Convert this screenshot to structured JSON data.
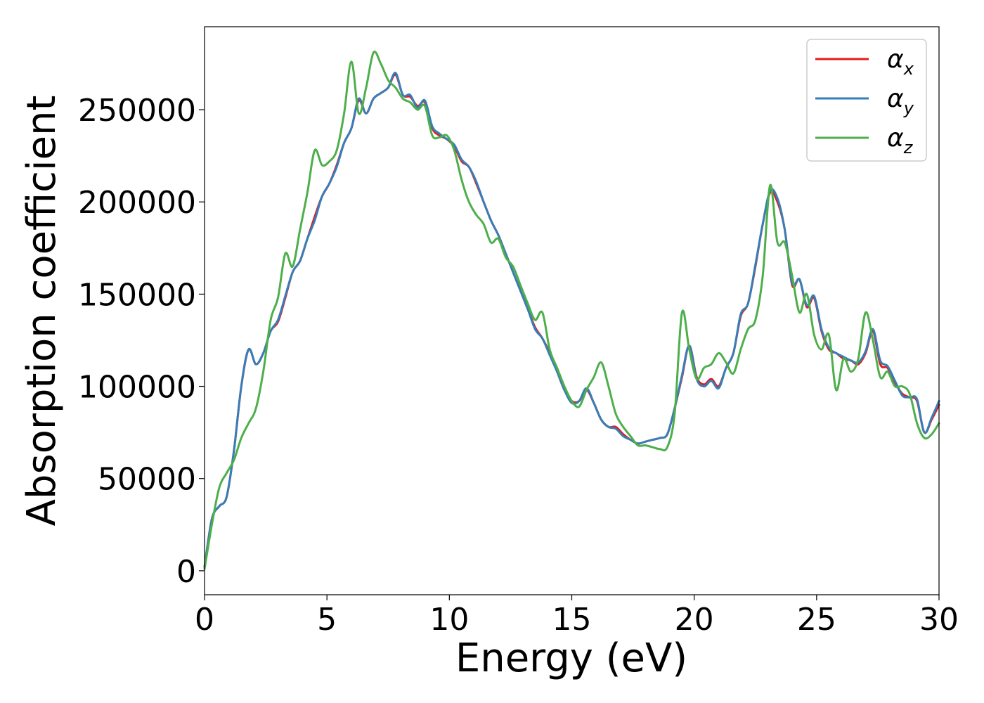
{
  "chart_data": {
    "type": "line",
    "xlabel": "Energy (eV)",
    "ylabel": "Absorption coefficient",
    "xlim": [
      0,
      30
    ],
    "ylim": [
      -13000,
      295000
    ],
    "xticks": [
      0,
      5,
      10,
      15,
      20,
      25,
      30
    ],
    "yticks": [
      0,
      50000,
      100000,
      150000,
      200000,
      250000
    ],
    "grid": false,
    "legend_position": "top-right",
    "series": [
      {
        "name": "α",
        "subscript": "x",
        "color": "#e41a1c",
        "x": [
          0,
          0.3,
          0.6,
          0.9,
          1.2,
          1.5,
          1.8,
          2.1,
          2.4,
          2.7,
          3.0,
          3.3,
          3.6,
          3.9,
          4.2,
          4.5,
          4.8,
          5.1,
          5.4,
          5.7,
          6.0,
          6.3,
          6.6,
          6.9,
          7.2,
          7.5,
          7.8,
          8.1,
          8.4,
          8.7,
          9.0,
          9.3,
          9.6,
          9.9,
          10.2,
          10.5,
          10.8,
          11.1,
          11.4,
          11.7,
          12.0,
          12.3,
          12.6,
          12.9,
          13.2,
          13.5,
          13.8,
          14.1,
          14.4,
          14.7,
          15.0,
          15.3,
          15.6,
          15.9,
          16.2,
          16.5,
          16.8,
          17.1,
          17.4,
          17.7,
          18.0,
          18.3,
          18.6,
          18.9,
          19.2,
          19.5,
          19.8,
          20.1,
          20.4,
          20.7,
          21.0,
          21.3,
          21.6,
          21.9,
          22.2,
          22.5,
          22.8,
          23.1,
          23.4,
          23.7,
          24.0,
          24.3,
          24.6,
          24.9,
          25.2,
          25.5,
          25.8,
          26.1,
          26.4,
          26.7,
          27.0,
          27.3,
          27.6,
          27.9,
          28.2,
          28.5,
          28.8,
          29.1,
          29.4,
          29.7,
          30.0
        ],
        "y": [
          2000,
          28000,
          35000,
          40000,
          65000,
          100000,
          120000,
          112000,
          118000,
          130000,
          135000,
          148000,
          162000,
          168000,
          180000,
          192000,
          203000,
          210000,
          220000,
          232000,
          240000,
          255000,
          248000,
          256000,
          259000,
          262000,
          269000,
          258000,
          257000,
          252000,
          254000,
          240000,
          236000,
          234000,
          230000,
          222000,
          219000,
          210000,
          200000,
          190000,
          182000,
          172000,
          162000,
          152000,
          142000,
          132000,
          126000,
          118000,
          108000,
          98000,
          92000,
          92000,
          98000,
          91000,
          82000,
          78000,
          78000,
          74000,
          71000,
          69000,
          70000,
          71000,
          72000,
          74000,
          88000,
          105000,
          122000,
          105000,
          101000,
          104000,
          100000,
          110000,
          118000,
          138000,
          145000,
          165000,
          188000,
          205000,
          200000,
          185000,
          155000,
          158000,
          143000,
          148000,
          130000,
          120000,
          118000,
          115000,
          114000,
          112000,
          118000,
          130000,
          112000,
          110000,
          102000,
          96000,
          94000,
          92000,
          75000,
          82000,
          90000
        ]
      },
      {
        "name": "α",
        "subscript": "y",
        "color": "#377eb8",
        "x": [
          0,
          0.3,
          0.6,
          0.9,
          1.2,
          1.5,
          1.8,
          2.1,
          2.4,
          2.7,
          3.0,
          3.3,
          3.6,
          3.9,
          4.2,
          4.5,
          4.8,
          5.1,
          5.4,
          5.7,
          6.0,
          6.3,
          6.6,
          6.9,
          7.2,
          7.5,
          7.8,
          8.1,
          8.4,
          8.7,
          9.0,
          9.3,
          9.6,
          9.9,
          10.2,
          10.5,
          10.8,
          11.1,
          11.4,
          11.7,
          12.0,
          12.3,
          12.6,
          12.9,
          13.2,
          13.5,
          13.8,
          14.1,
          14.4,
          14.7,
          15.0,
          15.3,
          15.6,
          15.9,
          16.2,
          16.5,
          16.8,
          17.1,
          17.4,
          17.7,
          18.0,
          18.3,
          18.6,
          18.9,
          19.2,
          19.5,
          19.8,
          20.1,
          20.4,
          20.7,
          21.0,
          21.3,
          21.6,
          21.9,
          22.2,
          22.5,
          22.8,
          23.1,
          23.4,
          23.7,
          24.0,
          24.3,
          24.6,
          24.9,
          25.2,
          25.5,
          25.8,
          26.1,
          26.4,
          26.7,
          27.0,
          27.3,
          27.6,
          27.9,
          28.2,
          28.5,
          28.8,
          29.1,
          29.4,
          29.7,
          30.0
        ],
        "y": [
          2000,
          28000,
          35000,
          40000,
          65000,
          100000,
          120000,
          112000,
          118000,
          130000,
          136000,
          149000,
          162000,
          168000,
          180000,
          190000,
          203000,
          210000,
          219000,
          232000,
          240000,
          256000,
          248000,
          256000,
          259000,
          262000,
          270000,
          258000,
          258000,
          251000,
          255000,
          241000,
          237000,
          234000,
          231000,
          223000,
          219000,
          211000,
          200000,
          190000,
          182000,
          172000,
          162000,
          152000,
          142000,
          131000,
          126000,
          117000,
          108000,
          98000,
          91000,
          92000,
          99000,
          91000,
          82000,
          78000,
          77000,
          73000,
          71000,
          69000,
          70000,
          71000,
          72000,
          74000,
          88000,
          106000,
          122000,
          104000,
          100000,
          103000,
          99000,
          110000,
          118000,
          139000,
          145000,
          166000,
          188000,
          206000,
          202000,
          185000,
          156000,
          158000,
          144000,
          149000,
          131000,
          121000,
          118000,
          116000,
          114000,
          113000,
          119000,
          131000,
          114000,
          111000,
          103000,
          95000,
          94000,
          93000,
          75000,
          83000,
          92000
        ]
      },
      {
        "name": "α",
        "subscript": "z",
        "color": "#4daf4a",
        "x": [
          0,
          0.3,
          0.6,
          0.9,
          1.2,
          1.5,
          1.8,
          2.1,
          2.4,
          2.7,
          3.0,
          3.3,
          3.6,
          3.9,
          4.2,
          4.5,
          4.8,
          5.1,
          5.4,
          5.7,
          6.0,
          6.3,
          6.6,
          6.9,
          7.2,
          7.5,
          7.8,
          8.1,
          8.4,
          8.7,
          9.0,
          9.3,
          9.6,
          9.9,
          10.2,
          10.5,
          10.8,
          11.1,
          11.4,
          11.7,
          12.0,
          12.3,
          12.6,
          12.9,
          13.2,
          13.5,
          13.8,
          14.1,
          14.4,
          14.7,
          15.0,
          15.3,
          15.6,
          15.9,
          16.2,
          16.5,
          16.8,
          17.1,
          17.4,
          17.7,
          18.0,
          18.3,
          18.6,
          18.9,
          19.2,
          19.5,
          19.8,
          20.1,
          20.4,
          20.7,
          21.0,
          21.3,
          21.6,
          21.9,
          22.2,
          22.5,
          22.8,
          23.1,
          23.4,
          23.7,
          24.0,
          24.3,
          24.6,
          24.9,
          25.2,
          25.5,
          25.8,
          26.1,
          26.4,
          26.7,
          27.0,
          27.3,
          27.6,
          27.9,
          28.2,
          28.5,
          28.8,
          29.1,
          29.4,
          29.7,
          30.0
        ],
        "y": [
          1000,
          25000,
          45000,
          53000,
          60000,
          72000,
          80000,
          88000,
          108000,
          136000,
          148000,
          172000,
          165000,
          185000,
          205000,
          228000,
          220000,
          222000,
          228000,
          248000,
          276000,
          248000,
          262000,
          281000,
          275000,
          266000,
          262000,
          256000,
          254000,
          250000,
          252000,
          236000,
          235000,
          236000,
          228000,
          212000,
          200000,
          193000,
          188000,
          178000,
          180000,
          170000,
          165000,
          155000,
          145000,
          136000,
          140000,
          120000,
          110000,
          100000,
          92000,
          89000,
          98000,
          105000,
          113000,
          100000,
          85000,
          78000,
          73000,
          68000,
          68000,
          67000,
          66000,
          67000,
          85000,
          140000,
          120000,
          104000,
          110000,
          112000,
          118000,
          113000,
          107000,
          120000,
          131000,
          136000,
          160000,
          209000,
          178000,
          178000,
          160000,
          140000,
          150000,
          128000,
          120000,
          128000,
          98000,
          115000,
          108000,
          115000,
          140000,
          125000,
          105000,
          108000,
          100000,
          100000,
          96000,
          80000,
          72000,
          74000,
          80000
        ]
      }
    ]
  }
}
